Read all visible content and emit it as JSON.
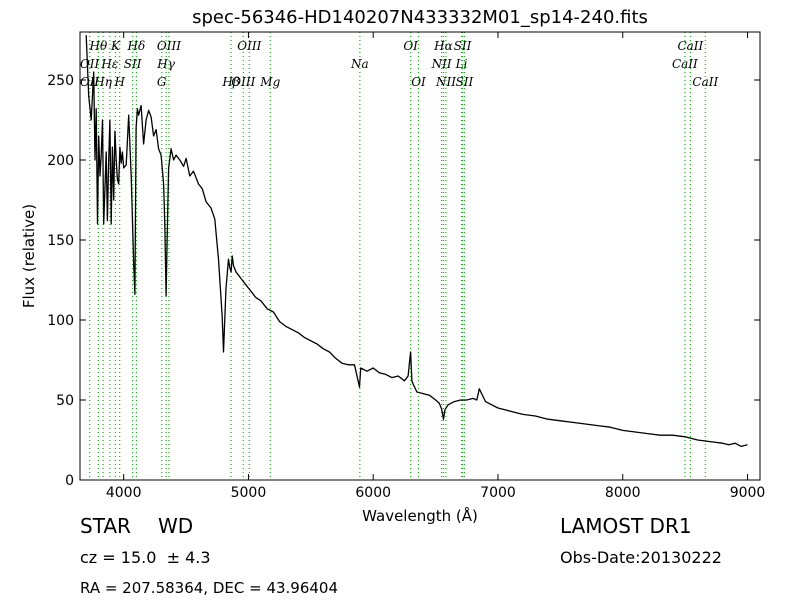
{
  "chart_data": {
    "type": "line",
    "title": "spec-56346-HD140207N433332M01_sp14-240.fits",
    "xlabel": "Wavelength (Å)",
    "ylabel": "Flux (relative)",
    "xlim": [
      3650,
      9100
    ],
    "ylim": [
      0,
      280
    ],
    "xticks": [
      4000,
      5000,
      6000,
      7000,
      8000,
      9000
    ],
    "yticks": [
      0,
      50,
      100,
      150,
      200,
      250
    ],
    "grid": false,
    "series": [
      {
        "color": "#000000",
        "x": [
          3700,
          3720,
          3740,
          3760,
          3770,
          3780,
          3790,
          3800,
          3810,
          3820,
          3830,
          3840,
          3860,
          3870,
          3880,
          3890,
          3900,
          3910,
          3920,
          3930,
          3940,
          3950,
          3960,
          3970,
          3980,
          3990,
          4000,
          4020,
          4040,
          4060,
          4080,
          4090,
          4100,
          4110,
          4120,
          4140,
          4160,
          4180,
          4200,
          4220,
          4240,
          4260,
          4280,
          4300,
          4320,
          4330,
          4340,
          4350,
          4360,
          4380,
          4400,
          4420,
          4450,
          4480,
          4500,
          4530,
          4560,
          4600,
          4630,
          4660,
          4700,
          4730,
          4760,
          4790,
          4800,
          4820,
          4840,
          4850,
          4861,
          4870,
          4880,
          4900,
          4920,
          4950,
          4980,
          5000,
          5030,
          5060,
          5100,
          5150,
          5200,
          5250,
          5300,
          5350,
          5400,
          5450,
          5500,
          5550,
          5600,
          5650,
          5700,
          5750,
          5800,
          5850,
          5890,
          5900,
          5950,
          6000,
          6050,
          6100,
          6150,
          6200,
          6250,
          6280,
          6300,
          6310,
          6320,
          6350,
          6400,
          6450,
          6500,
          6530,
          6550,
          6563,
          6575,
          6600,
          6650,
          6700,
          6750,
          6800,
          6830,
          6850,
          6900,
          6950,
          7000,
          7100,
          7200,
          7300,
          7400,
          7500,
          7600,
          7700,
          7800,
          7900,
          8000,
          8100,
          8200,
          8300,
          8400,
          8500,
          8600,
          8700,
          8800,
          8850,
          8900,
          8950,
          9000
        ],
        "values": [
          278,
          240,
          225,
          255,
          200,
          232,
          160,
          215,
          190,
          203,
          225,
          160,
          205,
          162,
          200,
          225,
          160,
          208,
          175,
          218,
          200,
          188,
          185,
          208,
          198,
          205,
          195,
          197,
          228,
          190,
          135,
          116,
          220,
          232,
          228,
          234,
          210,
          225,
          231,
          227,
          215,
          219,
          207,
          203,
          185,
          160,
          115,
          155,
          195,
          207,
          200,
          203,
          200,
          196,
          201,
          190,
          193,
          185,
          182,
          174,
          170,
          163,
          138,
          102,
          80,
          120,
          138,
          133,
          130,
          140,
          134,
          130,
          128,
          125,
          122,
          120,
          117,
          114,
          112,
          107,
          105,
          99,
          96,
          94,
          92,
          89,
          87,
          85,
          82,
          80,
          76,
          73,
          72,
          72,
          58,
          70,
          68,
          70,
          67,
          66,
          64,
          65,
          62,
          65,
          80,
          62,
          60,
          55,
          54,
          53,
          50,
          48,
          44,
          38,
          44,
          47,
          49,
          50,
          50,
          51,
          50,
          57,
          49,
          47,
          45,
          43,
          41,
          40,
          38,
          37,
          36,
          35,
          34,
          33,
          31,
          30,
          29,
          28,
          28,
          27,
          25,
          24,
          23,
          22,
          23,
          21,
          22
        ]
      }
    ],
    "line_labels": [
      {
        "label": "Hθ",
        "x": 3797,
        "row": 0,
        "color": "#2ca02c"
      },
      {
        "label": "K",
        "x": 3934,
        "row": 0,
        "color": "#2ca02c"
      },
      {
        "label": "Hδ",
        "x": 4102,
        "row": 0,
        "color": "#2ca02c"
      },
      {
        "label": "OIII",
        "x": 4363,
        "row": 0,
        "color": "#2ca02c"
      },
      {
        "label": "OIII",
        "x": 5007,
        "row": 0,
        "color": "#2ca02c"
      },
      {
        "label": "OI",
        "x": 6300,
        "row": 0,
        "color": "#2ca02c"
      },
      {
        "label": "Hα",
        "x": 6563,
        "row": 0,
        "color": "#2ca02c"
      },
      {
        "label": "SII",
        "x": 6716,
        "row": 0,
        "color": "#2ca02c"
      },
      {
        "label": "CaII",
        "x": 8542,
        "row": 0,
        "color": "#2ca02c"
      },
      {
        "label": "OII",
        "x": 3727,
        "row": 1,
        "color": "#2ca02c"
      },
      {
        "label": "Hε",
        "x": 3889,
        "row": 1,
        "color": "#2ca02c"
      },
      {
        "label": "SII",
        "x": 4072,
        "row": 1,
        "color": "#2ca02c"
      },
      {
        "label": "Hγ",
        "x": 4340,
        "row": 1,
        "color": "#2ca02c"
      },
      {
        "label": "Na",
        "x": 5893,
        "row": 1,
        "color": "#2ca02c"
      },
      {
        "label": "NII",
        "x": 6548,
        "row": 1,
        "color": "#2ca02c"
      },
      {
        "label": "Li",
        "x": 6708,
        "row": 1,
        "color": "#2ca02c"
      },
      {
        "label": "CaII",
        "x": 8498,
        "row": 1,
        "color": "#2ca02c"
      },
      {
        "label": "OII",
        "x": 3727,
        "row": 2,
        "color": "#2ca02c"
      },
      {
        "label": "Hη",
        "x": 3835,
        "row": 2,
        "color": "#2ca02c"
      },
      {
        "label": "H",
        "x": 3968,
        "row": 2,
        "color": "#2ca02c"
      },
      {
        "label": "G",
        "x": 4305,
        "row": 2,
        "color": "#2ca02c"
      },
      {
        "label": "Hβ",
        "x": 4861,
        "row": 2,
        "color": "#2ca02c"
      },
      {
        "label": "OIII",
        "x": 4959,
        "row": 2,
        "color": "#2ca02c"
      },
      {
        "label": "Mg",
        "x": 5175,
        "row": 2,
        "color": "#2ca02c"
      },
      {
        "label": "OI",
        "x": 6363,
        "row": 2,
        "color": "#2ca02c"
      },
      {
        "label": "NII",
        "x": 6583,
        "row": 2,
        "color": "#2ca02c"
      },
      {
        "label": "SII",
        "x": 6731,
        "row": 2,
        "color": "#2ca02c"
      },
      {
        "label": "CaII",
        "x": 8662,
        "row": 2,
        "color": "#2ca02c"
      }
    ],
    "line_color": "#2ca02c"
  },
  "info": {
    "class": "STAR",
    "subclass": "WD",
    "survey": "LAMOST DR1",
    "redshift": "cz = 15.0  ± 4.3",
    "obs_date": "Obs-Date:20130222",
    "coords": "RA = 207.58364, DEC = 43.96404"
  }
}
